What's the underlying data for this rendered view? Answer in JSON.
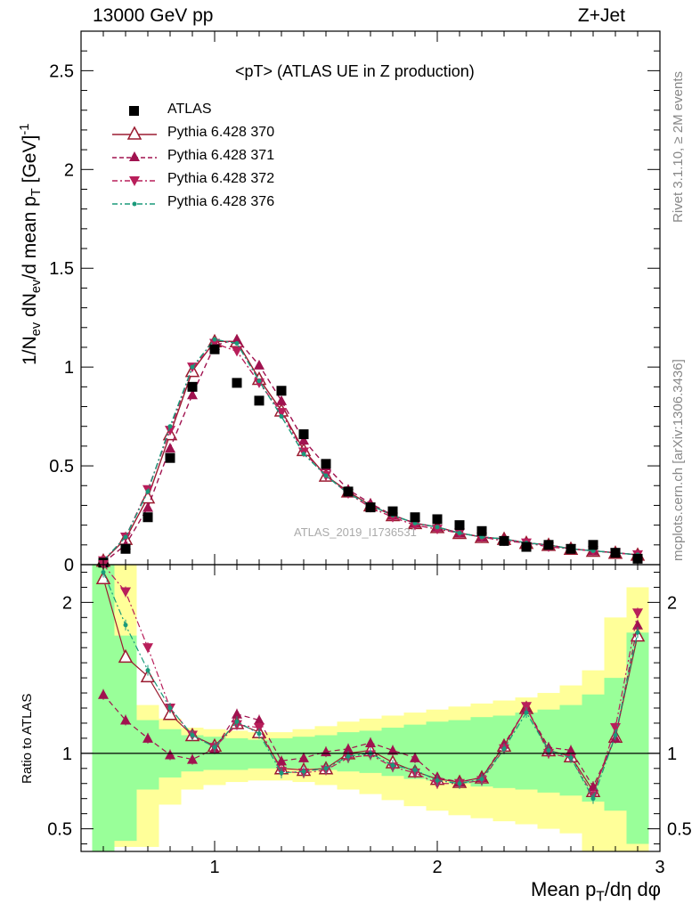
{
  "header": {
    "left": "13000 GeV pp",
    "right": "Z+Jet",
    "side_top": "Rivet 3.1.10, ≥ 2M events",
    "side_bottom": "mcplots.cern.ch [arXiv:1306.3436]",
    "watermark": "ATLAS_2019_I1736531"
  },
  "chart_data": [
    {
      "type": "scatter",
      "title": "<pT> (ATLAS UE in Z production)",
      "ylabel": "1/N_ev dN_ev/d mean p_T [GeV]^-1",
      "xlim": [
        0.4,
        3.0
      ],
      "ylim": [
        0,
        2.7
      ],
      "yticks": [
        "0",
        "0.5",
        "1",
        "1.5",
        "2",
        "2.5"
      ],
      "x": [
        0.5,
        0.6,
        0.7,
        0.8,
        0.9,
        1.0,
        1.1,
        1.2,
        1.3,
        1.4,
        1.5,
        1.6,
        1.7,
        1.8,
        1.9,
        2.0,
        2.1,
        2.2,
        2.3,
        2.4,
        2.5,
        2.6,
        2.7,
        2.8,
        2.9
      ],
      "series": [
        {
          "name": "ATLAS",
          "color": "#000000",
          "marker": "square",
          "values": [
            0.01,
            0.08,
            0.24,
            0.54,
            0.9,
            1.09,
            0.92,
            0.83,
            0.88,
            0.66,
            0.51,
            0.37,
            0.29,
            0.27,
            0.24,
            0.23,
            0.2,
            0.17,
            0.12,
            0.09,
            0.1,
            0.08,
            0.1,
            0.06,
            0.03
          ]
        },
        {
          "name": "Pythia 6.428 370",
          "color": "#9b1b30",
          "marker": "triangle-up-open",
          "line": "solid",
          "values": [
            0.02,
            0.13,
            0.34,
            0.66,
            0.98,
            1.13,
            1.13,
            0.94,
            0.78,
            0.58,
            0.45,
            0.37,
            0.3,
            0.25,
            0.21,
            0.19,
            0.16,
            0.14,
            0.13,
            0.11,
            0.1,
            0.08,
            0.07,
            0.06,
            0.05
          ]
        },
        {
          "name": "Pythia 6.428 371",
          "color": "#a0124f",
          "marker": "triangle-up",
          "line": "dashed",
          "values": [
            0.01,
            0.1,
            0.29,
            0.59,
            0.86,
            1.11,
            1.14,
            1.01,
            0.83,
            0.63,
            0.5,
            0.38,
            0.31,
            0.25,
            0.21,
            0.19,
            0.16,
            0.14,
            0.13,
            0.11,
            0.1,
            0.08,
            0.07,
            0.06,
            0.05
          ]
        },
        {
          "name": "Pythia 6.428 372",
          "color": "#b81e5a",
          "marker": "triangle-down",
          "line": "dashdot",
          "values": [
            0.02,
            0.14,
            0.38,
            0.68,
            1.0,
            1.12,
            1.08,
            0.92,
            0.77,
            0.57,
            0.45,
            0.36,
            0.29,
            0.24,
            0.2,
            0.18,
            0.16,
            0.14,
            0.12,
            0.11,
            0.09,
            0.08,
            0.07,
            0.06,
            0.05
          ]
        },
        {
          "name": "Pythia 6.428 376",
          "color": "#1a9a7a",
          "marker": "dot",
          "line": "dashdot",
          "values": [
            0.02,
            0.14,
            0.37,
            0.7,
            1.0,
            1.14,
            1.12,
            0.93,
            0.75,
            0.56,
            0.45,
            0.36,
            0.3,
            0.25,
            0.21,
            0.19,
            0.16,
            0.14,
            0.13,
            0.11,
            0.1,
            0.08,
            0.07,
            0.06,
            0.05
          ]
        }
      ]
    },
    {
      "type": "scatter",
      "xlabel": "Mean p_T/dη dφ",
      "ylabel": "Ratio to ATLAS",
      "xlim": [
        0.4,
        3.0
      ],
      "ylim": [
        0.35,
        2.25
      ],
      "xticks": [
        "1",
        "2",
        "3"
      ],
      "yticks": [
        "0.5",
        "1",
        "2"
      ],
      "band_green": [
        [
          0.35,
          2.25
        ],
        [
          0.42,
          1.78
        ],
        [
          0.76,
          1.22
        ],
        [
          0.84,
          1.16
        ],
        [
          0.88,
          1.12
        ],
        [
          0.89,
          1.11
        ],
        [
          0.89,
          1.1
        ],
        [
          0.9,
          1.09
        ],
        [
          0.9,
          1.1
        ],
        [
          0.9,
          1.11
        ],
        [
          0.89,
          1.12
        ],
        [
          0.88,
          1.14
        ],
        [
          0.87,
          1.15
        ],
        [
          0.85,
          1.17
        ],
        [
          0.83,
          1.19
        ],
        [
          0.82,
          1.21
        ],
        [
          0.8,
          1.22
        ],
        [
          0.78,
          1.24
        ],
        [
          0.77,
          1.25
        ],
        [
          0.76,
          1.27
        ],
        [
          0.74,
          1.29
        ],
        [
          0.72,
          1.32
        ],
        [
          0.68,
          1.39
        ],
        [
          0.62,
          1.5
        ],
        [
          0.4,
          1.8
        ]
      ],
      "band_yellow": [
        [
          0.35,
          2.25
        ],
        [
          0.38,
          2.25
        ],
        [
          0.38,
          1.32
        ],
        [
          0.66,
          1.23
        ],
        [
          0.76,
          1.17
        ],
        [
          0.79,
          1.16
        ],
        [
          0.81,
          1.15
        ],
        [
          0.82,
          1.14
        ],
        [
          0.82,
          1.14
        ],
        [
          0.81,
          1.16
        ],
        [
          0.79,
          1.18
        ],
        [
          0.76,
          1.21
        ],
        [
          0.73,
          1.23
        ],
        [
          0.69,
          1.25
        ],
        [
          0.65,
          1.27
        ],
        [
          0.62,
          1.29
        ],
        [
          0.59,
          1.31
        ],
        [
          0.57,
          1.33
        ],
        [
          0.55,
          1.35
        ],
        [
          0.53,
          1.37
        ],
        [
          0.5,
          1.4
        ],
        [
          0.47,
          1.45
        ],
        [
          0.35,
          1.55
        ],
        [
          0.35,
          1.9
        ],
        [
          0.35,
          2.1
        ]
      ],
      "series": [
        {
          "name": "Pythia 6.428 370",
          "color": "#9b1b30",
          "values": [
            2.16,
            1.64,
            1.51,
            1.26,
            1.12,
            1.05,
            1.2,
            1.14,
            0.9,
            0.89,
            0.9,
            1.0,
            1.02,
            0.94,
            0.88,
            0.83,
            0.81,
            0.84,
            1.05,
            1.3,
            1.02,
            0.98,
            0.75,
            1.11,
            1.78
          ]
        },
        {
          "name": "Pythia 6.428 371",
          "color": "#a0124f",
          "values": [
            1.39,
            1.22,
            1.1,
            0.99,
            0.96,
            1.03,
            1.26,
            1.22,
            0.95,
            0.97,
            1.01,
            1.03,
            1.07,
            1.02,
            0.97,
            0.84,
            0.81,
            0.84,
            1.06,
            1.3,
            1.04,
            1.02,
            0.78,
            1.1,
            1.85
          ]
        },
        {
          "name": "Pythia 6.428 372",
          "color": "#b81e5a",
          "values": [
            2.26,
            2.07,
            1.7,
            1.3,
            1.12,
            1.04,
            1.19,
            1.17,
            0.88,
            0.87,
            0.89,
            0.97,
            0.99,
            0.91,
            0.87,
            0.8,
            0.8,
            0.82,
            1.03,
            1.31,
            1.0,
            0.97,
            0.72,
            1.17,
            1.93
          ]
        },
        {
          "name": "Pythia 6.428 376",
          "color": "#1a9a7a",
          "values": [
            2.2,
            1.85,
            1.55,
            1.3,
            1.12,
            1.04,
            1.21,
            1.13,
            0.87,
            0.88,
            0.9,
            0.98,
            1.0,
            0.92,
            0.89,
            0.82,
            0.8,
            0.83,
            1.03,
            1.27,
            1.02,
            0.97,
            0.7,
            1.12,
            1.8
          ]
        }
      ]
    }
  ]
}
